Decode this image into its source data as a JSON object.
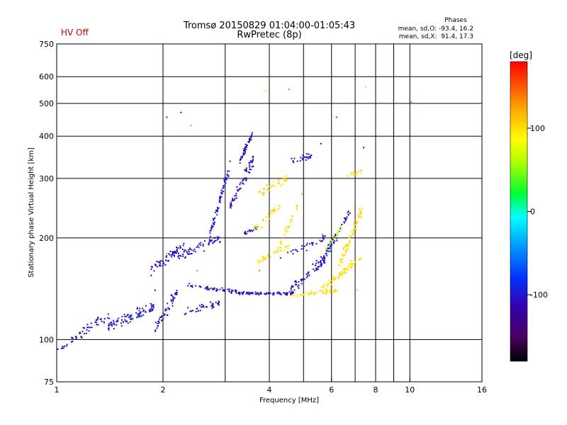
{
  "status": {
    "hv_label": "HV Off",
    "hv_color": "#cc0000"
  },
  "header": {
    "title": "Tromsø 20150829 01:04:00-01:05:43",
    "subtitle": "RwPretec (8p)"
  },
  "stats": {
    "title": "Phases",
    "line_o": "mean, sd,O: -93.4, 16.2",
    "line_x": "mean, sd,X:  91.4, 17.3"
  },
  "colorbar": {
    "unit_label": "[deg]",
    "range": [
      -180,
      180
    ],
    "ticks": [
      "100",
      "0",
      "-100"
    ],
    "tick_values": [
      100,
      0,
      -100
    ]
  },
  "chart_data": {
    "type": "scatter",
    "title": "",
    "xlabel": "Frequency [MHz]",
    "ylabel": "Stationary phase Virtual Height [km]",
    "xscale": "log2",
    "yscale": "log",
    "xlim": [
      1,
      16
    ],
    "ylim": [
      75,
      750
    ],
    "x_ticks": [
      1,
      2,
      4,
      6,
      8,
      10,
      16
    ],
    "x_tick_labels": [
      "1",
      "2",
      "4",
      "6",
      "8",
      "10",
      "16"
    ],
    "x_grid": [
      2,
      3,
      4,
      5,
      6,
      7,
      8,
      9,
      10
    ],
    "y_ticks": [
      75,
      100,
      200,
      300,
      400,
      500,
      600,
      750
    ],
    "y_tick_labels": [
      "75",
      "100",
      "200",
      "300",
      "400",
      "500",
      "600",
      "750"
    ],
    "grid": true,
    "series": [
      {
        "segments": [
          {
            "x0": 1.0,
            "x1": 1.08,
            "y0": 93,
            "y1": 96,
            "spread": 0.02,
            "n": 8,
            "phase": -100
          },
          {
            "x0": 1.1,
            "x1": 1.4,
            "y0": 100,
            "y1": 118,
            "spread": 0.05,
            "n": 45,
            "phase": -105
          },
          {
            "x0": 1.4,
            "x1": 1.9,
            "y0": 110,
            "y1": 125,
            "spread": 0.06,
            "n": 90,
            "phase": -100
          },
          {
            "x0": 1.9,
            "x1": 2.2,
            "y0": 108,
            "y1": 140,
            "spread": 0.06,
            "n": 50,
            "phase": -105
          },
          {
            "x0": 1.85,
            "x1": 2.3,
            "y0": 160,
            "y1": 190,
            "spread": 0.05,
            "n": 60,
            "phase": -110
          },
          {
            "x0": 2.2,
            "x1": 2.9,
            "y0": 175,
            "y1": 200,
            "spread": 0.05,
            "n": 60,
            "phase": -105
          },
          {
            "x0": 2.3,
            "x1": 2.9,
            "y0": 120,
            "y1": 128,
            "spread": 0.04,
            "n": 35,
            "phase": -110
          },
          {
            "x0": 2.3,
            "x1": 3.4,
            "y0": 145,
            "y1": 137,
            "spread": 0.02,
            "n": 60,
            "phase": -110
          },
          {
            "x0": 3.4,
            "x1": 4.7,
            "y0": 137,
            "y1": 137,
            "spread": 0.015,
            "n": 70,
            "phase": -105
          },
          {
            "x0": 2.7,
            "x1": 3.1,
            "y0": 200,
            "y1": 330,
            "spread": 0.05,
            "n": 70,
            "phase": -95
          },
          {
            "x0": 3.1,
            "x1": 3.6,
            "y0": 250,
            "y1": 340,
            "spread": 0.06,
            "n": 60,
            "phase": -110
          },
          {
            "x0": 3.3,
            "x1": 3.6,
            "y0": 340,
            "y1": 410,
            "spread": 0.04,
            "n": 40,
            "phase": -110
          },
          {
            "x0": 3.4,
            "x1": 3.7,
            "y0": 205,
            "y1": 215,
            "spread": 0.02,
            "n": 20,
            "phase": -100
          },
          {
            "x0": 3.6,
            "x1": 4.3,
            "y0": 210,
            "y1": 250,
            "spread": 0.05,
            "n": 30,
            "phase": 100
          },
          {
            "x0": 3.7,
            "x1": 4.5,
            "y0": 270,
            "y1": 300,
            "spread": 0.05,
            "n": 30,
            "phase": 105
          },
          {
            "x0": 3.7,
            "x1": 4.6,
            "y0": 170,
            "y1": 190,
            "spread": 0.03,
            "n": 35,
            "phase": 100
          },
          {
            "x0": 4.3,
            "x1": 4.8,
            "y0": 190,
            "y1": 250,
            "spread": 0.04,
            "n": 25,
            "phase": 100
          },
          {
            "x0": 4.6,
            "x1": 5.3,
            "y0": 340,
            "y1": 350,
            "spread": 0.03,
            "n": 25,
            "phase": -100
          },
          {
            "x0": 4.3,
            "x1": 5.8,
            "y0": 175,
            "y1": 200,
            "spread": 0.04,
            "n": 30,
            "phase": -105
          },
          {
            "x0": 4.6,
            "x1": 5.8,
            "y0": 140,
            "y1": 175,
            "spread": 0.05,
            "n": 55,
            "phase": -105
          },
          {
            "x0": 5.4,
            "x1": 6.8,
            "y0": 160,
            "y1": 240,
            "spread": 0.05,
            "n": 70,
            "phase": -105
          },
          {
            "x0": 4.6,
            "x1": 6.2,
            "y0": 135,
            "y1": 140,
            "spread": 0.02,
            "n": 45,
            "phase": 100
          },
          {
            "x0": 5.6,
            "x1": 7.3,
            "y0": 140,
            "y1": 175,
            "spread": 0.04,
            "n": 70,
            "phase": 100
          },
          {
            "x0": 6.3,
            "x1": 7.3,
            "y0": 165,
            "y1": 240,
            "spread": 0.06,
            "n": 70,
            "phase": 100
          },
          {
            "x0": 6.6,
            "x1": 7.3,
            "y0": 305,
            "y1": 315,
            "spread": 0.02,
            "n": 15,
            "phase": 100
          },
          {
            "x0": 5.8,
            "x1": 6.4,
            "y0": 185,
            "y1": 215,
            "spread": 0.03,
            "n": 20,
            "phase": 60
          }
        ],
        "outliers": [
          {
            "x": 2.05,
            "y": 455,
            "phase": -100
          },
          {
            "x": 2.25,
            "y": 470,
            "phase": -110
          },
          {
            "x": 2.4,
            "y": 430,
            "phase": 30
          },
          {
            "x": 3.9,
            "y": 545,
            "phase": 100
          },
          {
            "x": 4.55,
            "y": 550,
            "phase": 140
          },
          {
            "x": 6.2,
            "y": 455,
            "phase": 170
          },
          {
            "x": 7.5,
            "y": 560,
            "phase": 60
          },
          {
            "x": 7.4,
            "y": 370,
            "phase": -160
          },
          {
            "x": 10.1,
            "y": 505,
            "phase": -30
          },
          {
            "x": 5.6,
            "y": 380,
            "phase": -110
          },
          {
            "x": 3.75,
            "y": 160,
            "phase": 140
          },
          {
            "x": 2.5,
            "y": 160,
            "phase": 130
          },
          {
            "x": 2.05,
            "y": 180,
            "phase": 130
          },
          {
            "x": 1.9,
            "y": 140,
            "phase": -110
          },
          {
            "x": 4.95,
            "y": 270,
            "phase": 130
          },
          {
            "x": 7.1,
            "y": 140,
            "phase": 110
          }
        ]
      }
    ]
  }
}
